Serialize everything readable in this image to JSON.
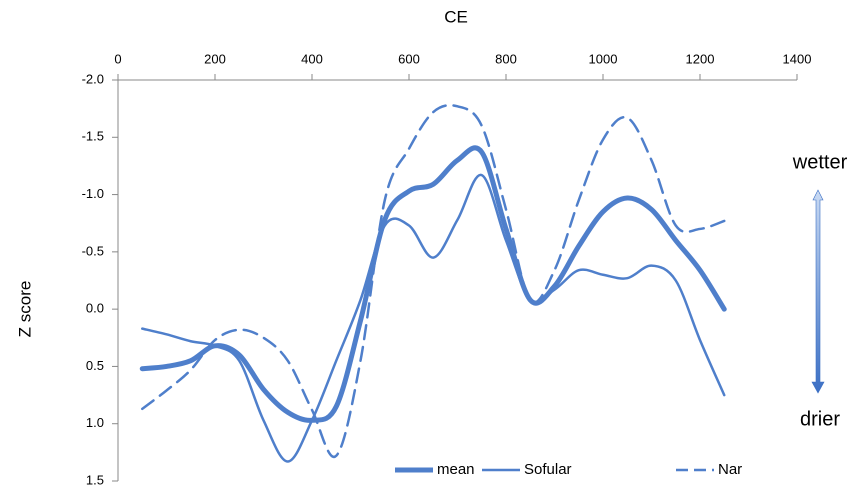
{
  "chart_data": {
    "type": "line",
    "xlabel": "CE",
    "ylabel": "Z score",
    "x_axis_position": "top",
    "y_inverted": true,
    "x": [
      50,
      100,
      150,
      200,
      250,
      300,
      350,
      400,
      450,
      500,
      550,
      600,
      650,
      700,
      750,
      800,
      850,
      900,
      950,
      1000,
      1050,
      1100,
      1150,
      1200,
      1250
    ],
    "series": [
      {
        "name": "mean",
        "color": "#4f7fcb",
        "line_width": 5,
        "line_style": "solid",
        "values": [
          0.52,
          0.5,
          0.45,
          0.32,
          0.4,
          0.7,
          0.9,
          0.97,
          0.85,
          0.1,
          -0.78,
          -1.03,
          -1.09,
          -1.3,
          -1.37,
          -0.7,
          -0.08,
          -0.2,
          -0.55,
          -0.85,
          -0.97,
          -0.87,
          -0.6,
          -0.34,
          0.0
        ]
      },
      {
        "name": "Sofular",
        "color": "#4f7fcb",
        "line_width": 2.5,
        "line_style": "solid",
        "values": [
          0.17,
          0.22,
          0.28,
          0.32,
          0.45,
          0.97,
          1.33,
          0.97,
          0.45,
          -0.08,
          -0.73,
          -0.73,
          -0.45,
          -0.78,
          -1.17,
          -0.6,
          -0.08,
          -0.17,
          -0.34,
          -0.3,
          -0.27,
          -0.38,
          -0.25,
          0.27,
          0.75
        ]
      },
      {
        "name": "Nar",
        "color": "#4f7fcb",
        "line_width": 2.5,
        "line_style": "dashed",
        "values": [
          0.87,
          0.71,
          0.53,
          0.27,
          0.18,
          0.25,
          0.45,
          0.88,
          1.28,
          0.45,
          -0.95,
          -1.4,
          -1.72,
          -1.77,
          -1.6,
          -0.87,
          -0.08,
          -0.34,
          -0.95,
          -1.48,
          -1.67,
          -1.3,
          -0.73,
          -0.7,
          -0.77
        ]
      }
    ],
    "xlim": [
      0,
      1400
    ],
    "xticks": [
      0,
      200,
      400,
      600,
      800,
      1000,
      1200,
      1400
    ],
    "ylim": [
      -2,
      1.5
    ],
    "yticks": [
      {
        "value": -2,
        "label": "-2.0"
      },
      -1.5,
      {
        "value": -1,
        "label": "-1.0"
      },
      -0.5,
      {
        "value": 0,
        "label": "0.0"
      },
      0.5,
      {
        "value": 1,
        "label": "1.0"
      },
      1.5
    ],
    "annotations": [
      "wetter",
      "drier"
    ],
    "legend": "bottom"
  }
}
